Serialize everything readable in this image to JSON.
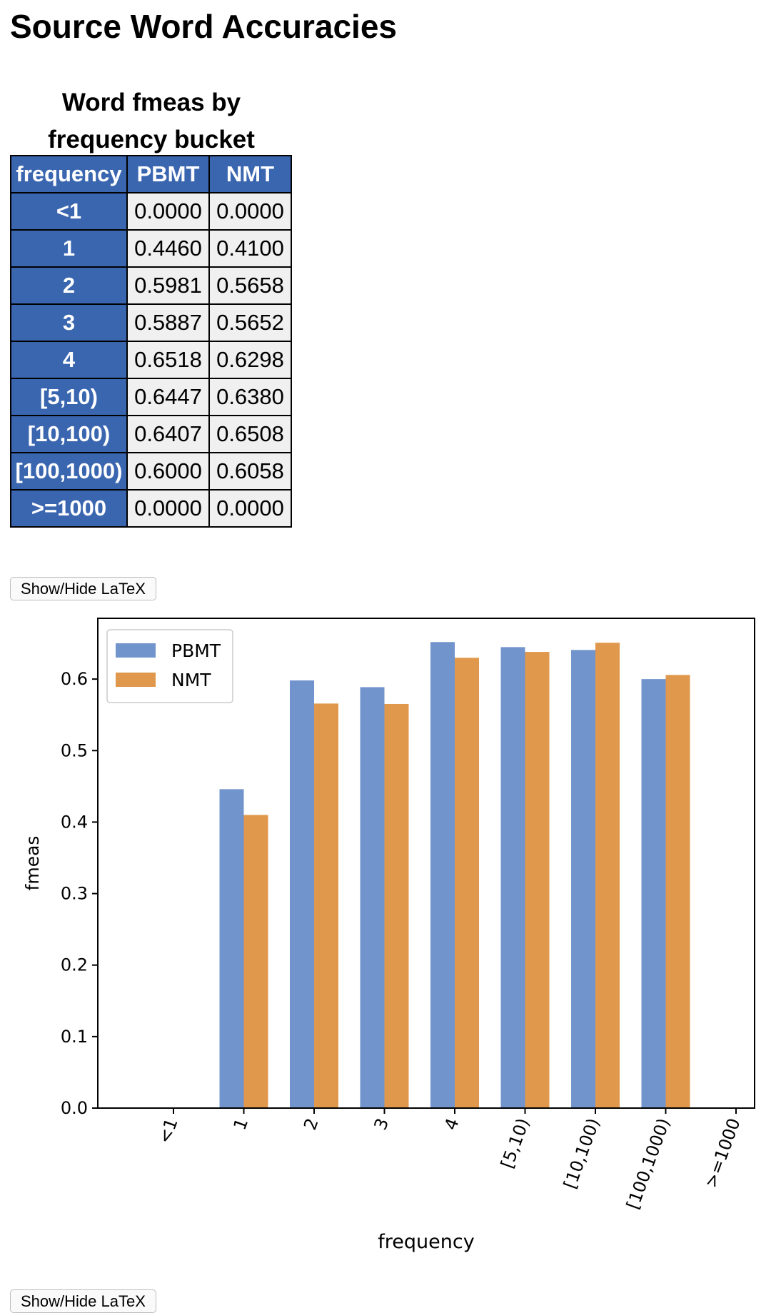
{
  "page": {
    "title": "Source Word Accuracies"
  },
  "table": {
    "caption_line1": "Word fmeas by",
    "caption_line2": "frequency bucket",
    "headers": [
      "frequency",
      "PBMT",
      "NMT"
    ],
    "rows": [
      [
        "<1",
        "0.0000",
        "0.0000"
      ],
      [
        "1",
        "0.4460",
        "0.4100"
      ],
      [
        "2",
        "0.5981",
        "0.5658"
      ],
      [
        "3",
        "0.5887",
        "0.5652"
      ],
      [
        "4",
        "0.6518",
        "0.6298"
      ],
      [
        "[5,10)",
        "0.6447",
        "0.6380"
      ],
      [
        "[10,100)",
        "0.6407",
        "0.6508"
      ],
      [
        "[100,1000)",
        "0.6000",
        "0.6058"
      ],
      [
        ">=1000",
        "0.0000",
        "0.0000"
      ]
    ]
  },
  "buttons": {
    "latex_label": "Show/Hide LaTeX"
  },
  "chart_data": {
    "type": "bar",
    "categories": [
      "<1",
      "1",
      "2",
      "3",
      "4",
      "[5,10)",
      "[10,100)",
      "[100,1000)",
      ">=1000"
    ],
    "series": [
      {
        "name": "PBMT",
        "color": "#7294cd",
        "values": [
          0.0,
          0.446,
          0.5981,
          0.5887,
          0.6518,
          0.6447,
          0.6407,
          0.6,
          0.0
        ]
      },
      {
        "name": "NMT",
        "color": "#e0984c",
        "values": [
          0.0,
          0.41,
          0.5658,
          0.5652,
          0.6298,
          0.638,
          0.6508,
          0.6058,
          0.0
        ]
      }
    ],
    "xlabel": "frequency",
    "ylabel": "fmeas",
    "ylim": [
      0,
      0.685
    ],
    "yticks": [
      "0.0",
      "0.1",
      "0.2",
      "0.3",
      "0.4",
      "0.5",
      "0.6"
    ],
    "legend_position": "top-left",
    "grid": false
  }
}
